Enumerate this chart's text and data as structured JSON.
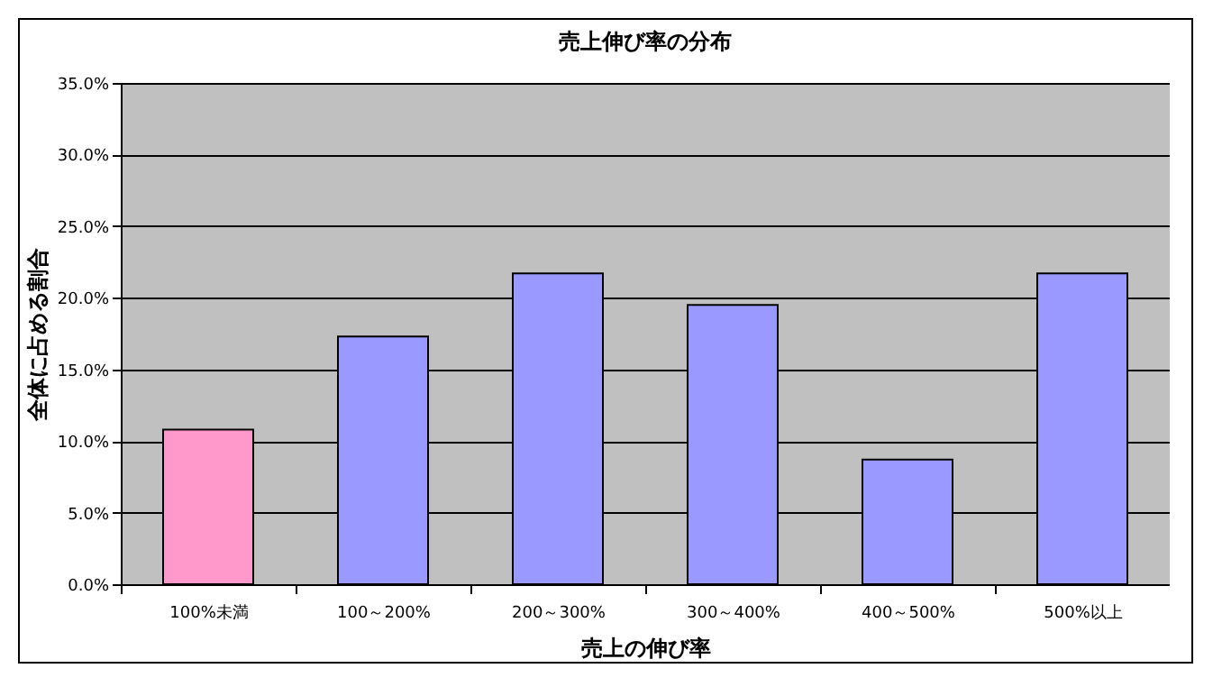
{
  "chart_data": {
    "type": "bar",
    "title": "売上伸び率の分布",
    "xlabel": "売上の伸び率",
    "ylabel": "全体に占める割合",
    "categories": [
      "100%未満",
      "100～200%",
      "200～300%",
      "300～400%",
      "400～500%",
      "500%以上"
    ],
    "values": [
      10.8,
      17.3,
      21.7,
      19.5,
      8.7,
      21.7
    ],
    "colors": [
      "#ff99cc",
      "#9999ff",
      "#9999ff",
      "#9999ff",
      "#9999ff",
      "#9999ff"
    ],
    "ylim": [
      0,
      35
    ],
    "yticks": [
      {
        "value": 0,
        "label": "0.0%"
      },
      {
        "value": 5,
        "label": "5.0%"
      },
      {
        "value": 10,
        "label": "10.0%"
      },
      {
        "value": 15,
        "label": "15.0%"
      },
      {
        "value": 20,
        "label": "20.0%"
      },
      {
        "value": 25,
        "label": "25.0%"
      },
      {
        "value": 30,
        "label": "30.0%"
      },
      {
        "value": 35,
        "label": "35.0%"
      }
    ],
    "grid": "y",
    "legend": false
  }
}
